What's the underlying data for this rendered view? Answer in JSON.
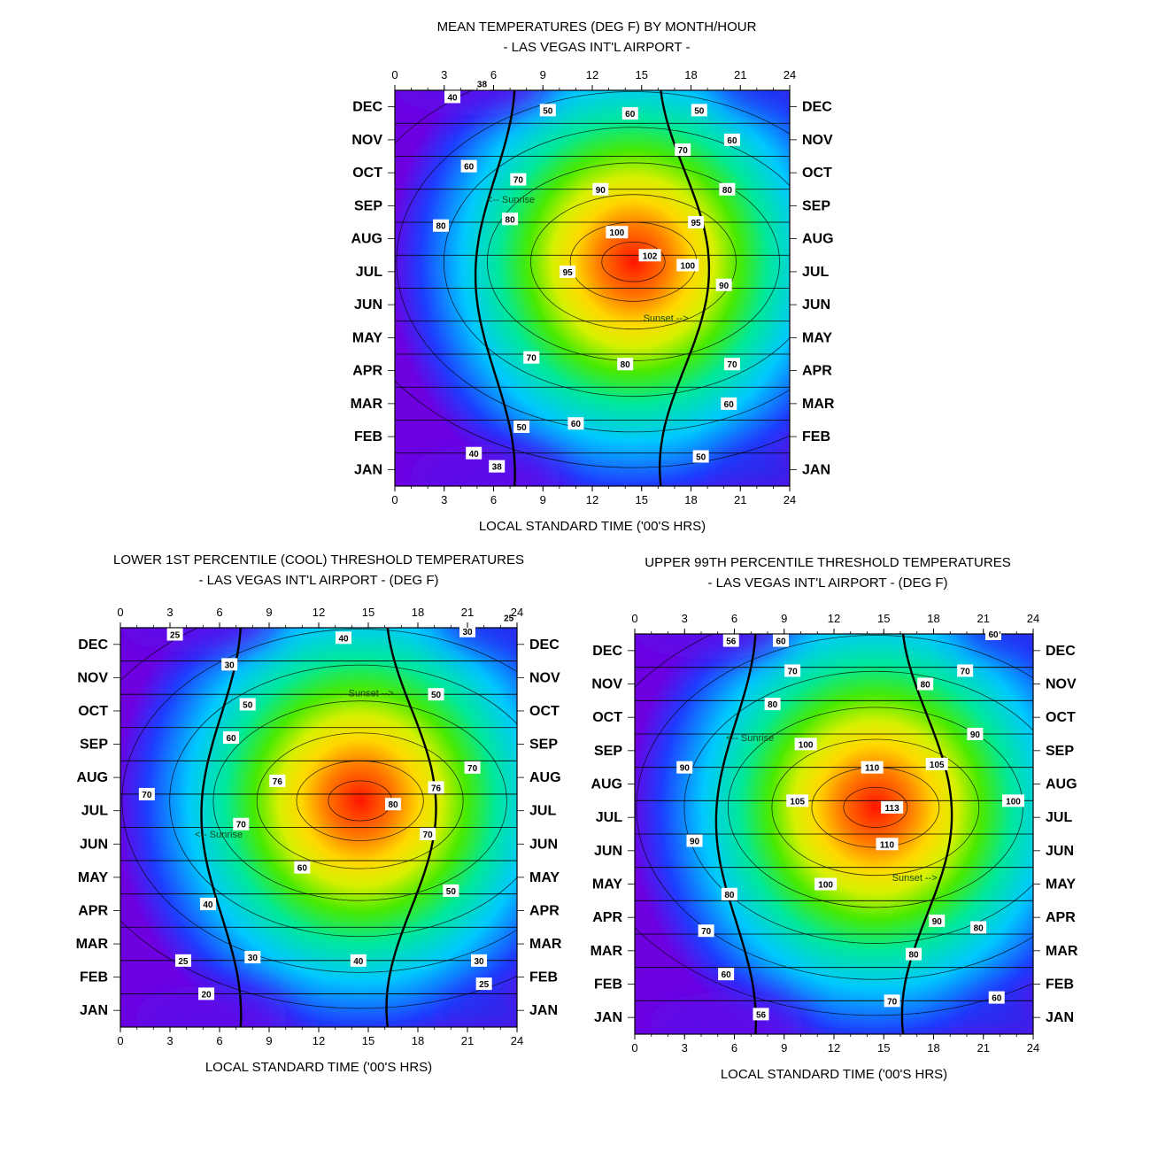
{
  "chart_data": [
    {
      "id": "top",
      "type": "heatmap",
      "title": "MEAN TEMPERATURES (DEG F) BY MONTH/HOUR",
      "subtitle": "- LAS VEGAS INT'L AIRPORT -",
      "xlabel": "LOCAL STANDARD TIME ('00'S HRS)",
      "xlim": [
        0,
        24
      ],
      "xticks": [
        0,
        3,
        6,
        9,
        12,
        15,
        18,
        21,
        24
      ],
      "months": [
        "JAN",
        "FEB",
        "MAR",
        "APR",
        "MAY",
        "JUN",
        "JUL",
        "AUG",
        "SEP",
        "OCT",
        "NOV",
        "DEC"
      ],
      "peak": {
        "hour": 14.5,
        "month_index": 6.3,
        "value": 102
      },
      "range": [
        35,
        104
      ],
      "contour_labels": [
        {
          "text": "38",
          "hour": 5.3,
          "month": 11.7
        },
        {
          "text": "40",
          "hour": 3.5,
          "month": 11.3
        },
        {
          "text": "50",
          "hour": 9.3,
          "month": 10.9
        },
        {
          "text": "60",
          "hour": 14.3,
          "month": 10.8
        },
        {
          "text": "50",
          "hour": 18.5,
          "month": 10.9
        },
        {
          "text": "60",
          "hour": 20.5,
          "month": 10.0
        },
        {
          "text": "70",
          "hour": 17.5,
          "month": 9.7
        },
        {
          "text": "60",
          "hour": 4.5,
          "month": 9.2
        },
        {
          "text": "70",
          "hour": 7.5,
          "month": 8.8
        },
        {
          "text": "80",
          "hour": 20.2,
          "month": 8.5
        },
        {
          "text": "90",
          "hour": 12.5,
          "month": 8.5
        },
        {
          "text": "80",
          "hour": 2.8,
          "month": 7.4
        },
        {
          "text": "80",
          "hour": 7.0,
          "month": 7.6
        },
        {
          "text": "95",
          "hour": 18.3,
          "month": 7.5
        },
        {
          "text": "100",
          "hour": 13.5,
          "month": 7.2
        },
        {
          "text": "102",
          "hour": 15.5,
          "month": 6.5
        },
        {
          "text": "100",
          "hour": 17.8,
          "month": 6.2
        },
        {
          "text": "95",
          "hour": 10.5,
          "month": 6.0
        },
        {
          "text": "90",
          "hour": 20.0,
          "month": 5.6
        },
        {
          "text": "70",
          "hour": 8.3,
          "month": 3.4
        },
        {
          "text": "80",
          "hour": 14.0,
          "month": 3.2
        },
        {
          "text": "70",
          "hour": 20.5,
          "month": 3.2
        },
        {
          "text": "60",
          "hour": 20.3,
          "month": 2.0
        },
        {
          "text": "60",
          "hour": 11.0,
          "month": 1.4
        },
        {
          "text": "50",
          "hour": 7.7,
          "month": 1.3
        },
        {
          "text": "40",
          "hour": 4.8,
          "month": 0.5
        },
        {
          "text": "38",
          "hour": 6.2,
          "month": 0.1
        },
        {
          "text": "50",
          "hour": 18.6,
          "month": 0.4
        }
      ],
      "annotations": [
        {
          "text": "<-- Sunrise",
          "hour": 5.6,
          "month": 8.2
        },
        {
          "text": "Sunset -->",
          "hour": 15.1,
          "month": 4.6
        }
      ]
    },
    {
      "id": "left",
      "type": "heatmap",
      "title": "LOWER 1ST PERCENTILE (COOL) THRESHOLD TEMPERATURES",
      "subtitle": "- LAS VEGAS INT'L AIRPORT -   (DEG F)",
      "xlabel": "LOCAL STANDARD TIME ('00'S HRS)",
      "xlim": [
        0,
        24
      ],
      "xticks": [
        0,
        3,
        6,
        9,
        12,
        15,
        18,
        21,
        24
      ],
      "months": [
        "JAN",
        "FEB",
        "MAR",
        "APR",
        "MAY",
        "JUN",
        "JUL",
        "AUG",
        "SEP",
        "OCT",
        "NOV",
        "DEC"
      ],
      "peak": {
        "hour": 14.5,
        "month_index": 6.3,
        "value": 82
      },
      "range": [
        18,
        84
      ],
      "contour_labels": [
        {
          "text": "25",
          "hour": 23.5,
          "month": 11.8
        },
        {
          "text": "25",
          "hour": 3.3,
          "month": 11.3
        },
        {
          "text": "40",
          "hour": 13.5,
          "month": 11.2
        },
        {
          "text": "30",
          "hour": 21.0,
          "month": 11.4
        },
        {
          "text": "30",
          "hour": 6.6,
          "month": 10.4
        },
        {
          "text": "50",
          "hour": 19.1,
          "month": 9.5
        },
        {
          "text": "50",
          "hour": 7.7,
          "month": 9.2
        },
        {
          "text": "60",
          "hour": 6.7,
          "month": 8.2
        },
        {
          "text": "70",
          "hour": 21.3,
          "month": 7.3
        },
        {
          "text": "76",
          "hour": 9.5,
          "month": 6.9
        },
        {
          "text": "76",
          "hour": 19.1,
          "month": 6.7
        },
        {
          "text": "70",
          "hour": 1.6,
          "month": 6.5
        },
        {
          "text": "80",
          "hour": 16.5,
          "month": 6.2
        },
        {
          "text": "70",
          "hour": 7.3,
          "month": 5.6
        },
        {
          "text": "70",
          "hour": 18.6,
          "month": 5.3
        },
        {
          "text": "60",
          "hour": 11.0,
          "month": 4.3
        },
        {
          "text": "50",
          "hour": 20.0,
          "month": 3.6
        },
        {
          "text": "40",
          "hour": 5.3,
          "month": 3.2
        },
        {
          "text": "30",
          "hour": 8.0,
          "month": 1.6
        },
        {
          "text": "40",
          "hour": 14.4,
          "month": 1.5
        },
        {
          "text": "30",
          "hour": 21.7,
          "month": 1.5
        },
        {
          "text": "25",
          "hour": 3.8,
          "month": 1.5
        },
        {
          "text": "25",
          "hour": 22.0,
          "month": 0.8
        },
        {
          "text": "20",
          "hour": 5.2,
          "month": 0.5
        }
      ],
      "annotations": [
        {
          "text": "Sunset -->",
          "hour": 13.8,
          "month": 9.55
        },
        {
          "text": "<-- Sunrise",
          "hour": 4.5,
          "month": 5.3
        }
      ]
    },
    {
      "id": "right",
      "type": "heatmap",
      "title": "UPPER 99TH PERCENTILE THRESHOLD TEMPERATURES",
      "subtitle": "- LAS VEGAS INT'L AIRPORT -   (DEG F)",
      "xlabel": "LOCAL STANDARD TIME ('00'S HRS)",
      "xlim": [
        0,
        24
      ],
      "xticks": [
        0,
        3,
        6,
        9,
        12,
        15,
        18,
        21,
        24
      ],
      "months": [
        "JAN",
        "FEB",
        "MAR",
        "APR",
        "MAY",
        "JUN",
        "JUL",
        "AUG",
        "SEP",
        "OCT",
        "NOV",
        "DEC"
      ],
      "peak": {
        "hour": 14.5,
        "month_index": 6.3,
        "value": 114
      },
      "range": [
        52,
        116
      ],
      "contour_labels": [
        {
          "text": "56",
          "hour": 5.8,
          "month": 11.3
        },
        {
          "text": "60",
          "hour": 8.8,
          "month": 11.3
        },
        {
          "text": "60",
          "hour": 21.6,
          "month": 11.5
        },
        {
          "text": "70",
          "hour": 9.5,
          "month": 10.4
        },
        {
          "text": "70",
          "hour": 19.9,
          "month": 10.4
        },
        {
          "text": "80",
          "hour": 17.5,
          "month": 10.0
        },
        {
          "text": "80",
          "hour": 8.3,
          "month": 9.4
        },
        {
          "text": "90",
          "hour": 20.5,
          "month": 8.5
        },
        {
          "text": "100",
          "hour": 10.3,
          "month": 8.2
        },
        {
          "text": "90",
          "hour": 3.0,
          "month": 7.5
        },
        {
          "text": "110",
          "hour": 14.3,
          "month": 7.5
        },
        {
          "text": "105",
          "hour": 18.2,
          "month": 7.6
        },
        {
          "text": "105",
          "hour": 9.8,
          "month": 6.5
        },
        {
          "text": "113",
          "hour": 15.5,
          "month": 6.3
        },
        {
          "text": "100",
          "hour": 22.8,
          "month": 6.5
        },
        {
          "text": "90",
          "hour": 3.6,
          "month": 5.3
        },
        {
          "text": "110",
          "hour": 15.2,
          "month": 5.2
        },
        {
          "text": "100",
          "hour": 11.5,
          "month": 4.0
        },
        {
          "text": "80",
          "hour": 5.7,
          "month": 3.7
        },
        {
          "text": "90",
          "hour": 18.2,
          "month": 2.9
        },
        {
          "text": "80",
          "hour": 20.7,
          "month": 2.7
        },
        {
          "text": "70",
          "hour": 4.3,
          "month": 2.6
        },
        {
          "text": "80",
          "hour": 16.8,
          "month": 1.9
        },
        {
          "text": "60",
          "hour": 5.5,
          "month": 1.3
        },
        {
          "text": "70",
          "hour": 15.5,
          "month": 0.5
        },
        {
          "text": "60",
          "hour": 21.8,
          "month": 0.6
        },
        {
          "text": "56",
          "hour": 7.6,
          "month": 0.1
        }
      ],
      "annotations": [
        {
          "text": "<-- Sunrise",
          "hour": 5.5,
          "month": 8.4
        },
        {
          "text": "Sunset -->",
          "hour": 15.5,
          "month": 4.2
        }
      ]
    }
  ]
}
